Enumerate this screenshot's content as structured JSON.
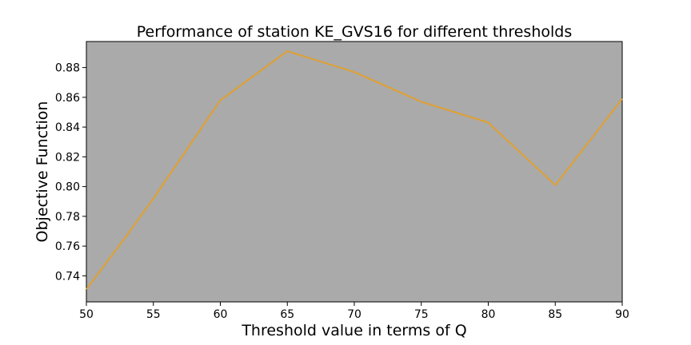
{
  "chart_data": {
    "type": "line",
    "title": "Performance of station KE_GVS16 for different thresholds",
    "xlabel": "Threshold value in terms of Q",
    "ylabel": "Objective Function",
    "xlim": [
      50,
      90
    ],
    "ylim": [
      0.7225,
      0.8975
    ],
    "xticks": [
      50,
      55,
      60,
      65,
      70,
      75,
      80,
      85,
      90
    ],
    "xtick_labels": [
      "50",
      "55",
      "60",
      "65",
      "70",
      "75",
      "80",
      "85",
      "90"
    ],
    "yticks": [
      0.74,
      0.76,
      0.78,
      0.8,
      0.82,
      0.84,
      0.86,
      0.88
    ],
    "ytick_labels": [
      "0.74",
      "0.76",
      "0.78",
      "0.80",
      "0.82",
      "0.84",
      "0.86",
      "0.88"
    ],
    "grid": false,
    "legend": "none",
    "series": [
      {
        "x": [
          50,
          53,
          55,
          60,
          65,
          70,
          75,
          80,
          85,
          90
        ],
        "y": [
          0.731,
          0.767,
          0.792,
          0.858,
          0.891,
          0.877,
          0.857,
          0.843,
          0.801,
          0.859
        ],
        "color": "#e0a030"
      }
    ],
    "plot_background": "#aaaaaa"
  }
}
